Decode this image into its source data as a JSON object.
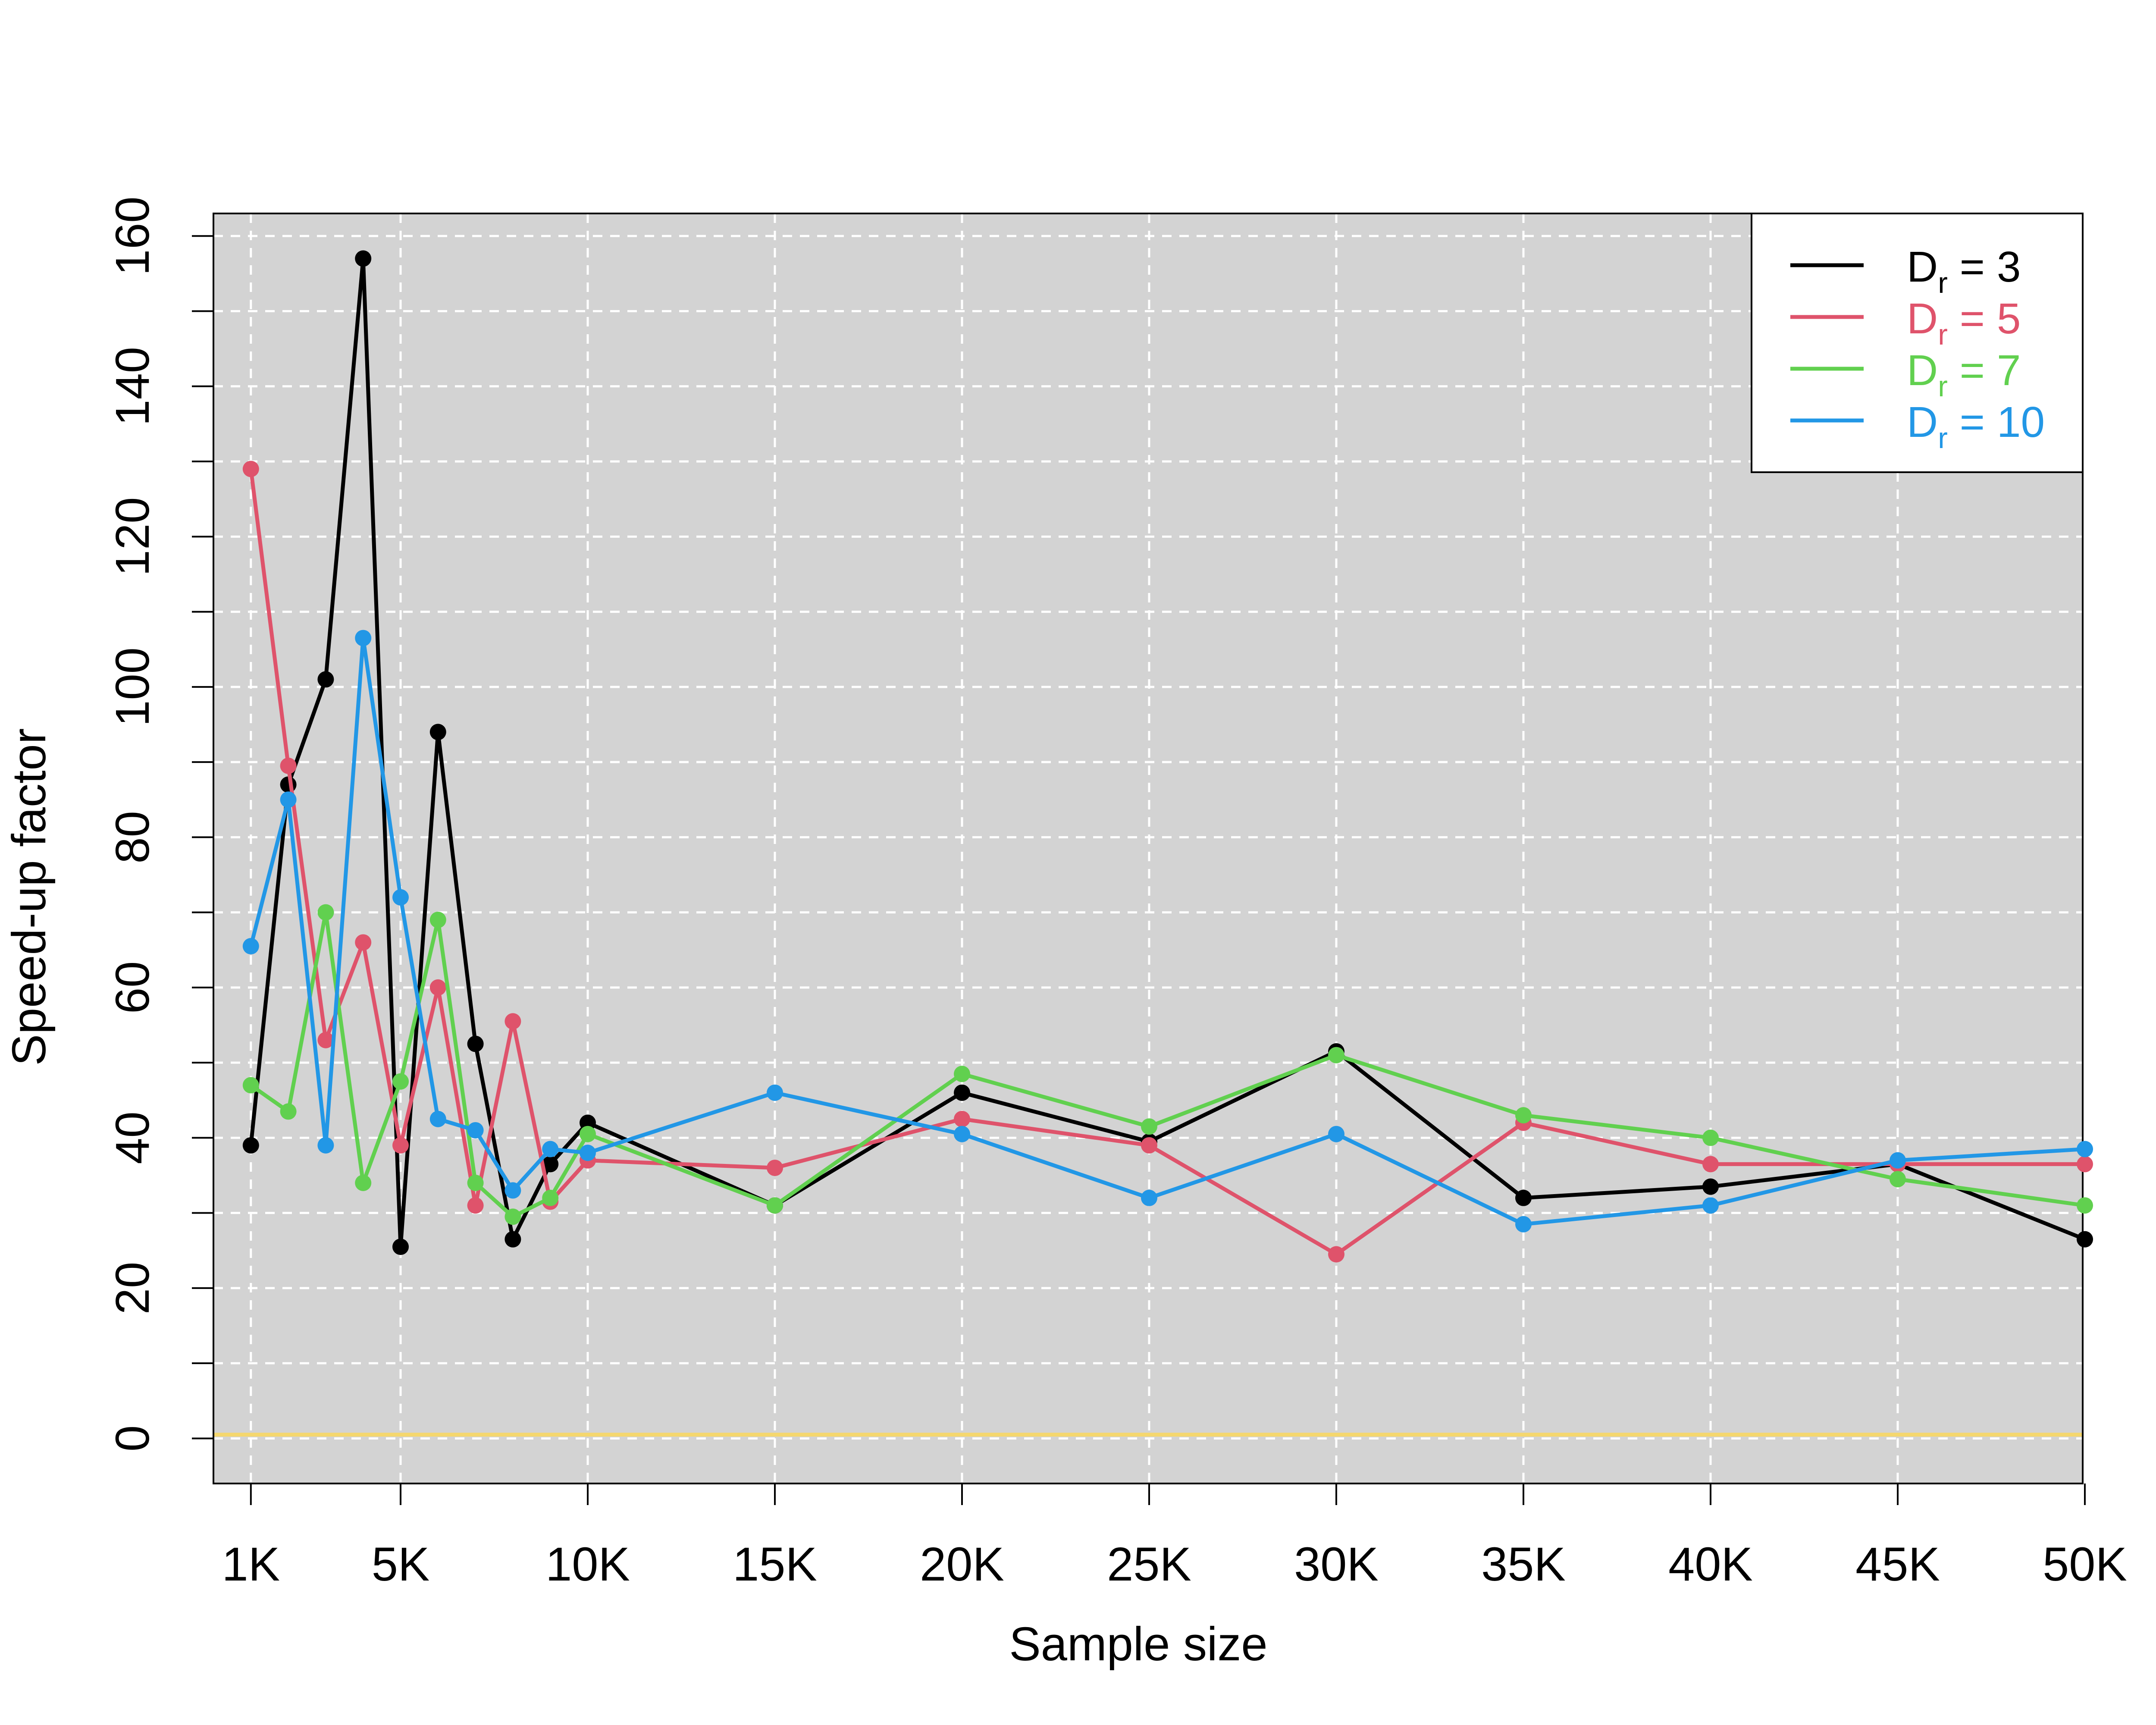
{
  "chart_data": {
    "type": "line",
    "xlabel": "Sample size",
    "ylabel": "Speed-up factor",
    "xlim": [
      0,
      50000
    ],
    "ylim": [
      -6,
      163
    ],
    "x_ticks": [
      {
        "value": 1000,
        "label": "1K"
      },
      {
        "value": 5000,
        "label": "5K"
      },
      {
        "value": 10000,
        "label": "10K"
      },
      {
        "value": 15000,
        "label": "15K"
      },
      {
        "value": 20000,
        "label": "20K"
      },
      {
        "value": 25000,
        "label": "25K"
      },
      {
        "value": 30000,
        "label": "30K"
      },
      {
        "value": 35000,
        "label": "35K"
      },
      {
        "value": 40000,
        "label": "40K"
      },
      {
        "value": 45000,
        "label": "45K"
      },
      {
        "value": 50000,
        "label": "50K"
      }
    ],
    "y_ticks": [
      {
        "value": 0,
        "label": "0"
      },
      {
        "value": 20,
        "label": "20"
      },
      {
        "value": 40,
        "label": "40"
      },
      {
        "value": 60,
        "label": "60"
      },
      {
        "value": 80,
        "label": "80"
      },
      {
        "value": 100,
        "label": "100"
      },
      {
        "value": 120,
        "label": "120"
      },
      {
        "value": 140,
        "label": "140"
      },
      {
        "value": 160,
        "label": "160"
      }
    ],
    "y_minor_ticks": [
      10,
      30,
      50,
      70,
      90,
      110,
      130,
      150
    ],
    "grid": true,
    "background_color": "#d3d3d3",
    "reference_line": {
      "y": 0.5,
      "color": "#f5d76e"
    },
    "legend": {
      "position": "top-right"
    },
    "x": [
      1000,
      2000,
      3000,
      4000,
      5000,
      6000,
      7000,
      8000,
      9000,
      10000,
      15000,
      20000,
      25000,
      30000,
      35000,
      40000,
      45000,
      50000
    ],
    "series": [
      {
        "legend_main": "D",
        "legend_sub": "r",
        "legend_rest": " = 3",
        "color": "#000000",
        "values": [
          39,
          87,
          101,
          157,
          25.5,
          94,
          52.5,
          26.5,
          36.5,
          42,
          31,
          46,
          39.5,
          51.5,
          32,
          33.5,
          36.5,
          26.5
        ]
      },
      {
        "legend_main": "D",
        "legend_sub": "r",
        "legend_rest": " = 5",
        "color": "#df536b",
        "values": [
          129,
          89.5,
          53,
          66,
          39,
          60,
          31,
          55.5,
          31.5,
          37,
          36,
          42.5,
          39,
          24.5,
          42,
          36.5,
          36.5,
          36.5
        ]
      },
      {
        "legend_main": "D",
        "legend_sub": "r",
        "legend_rest": " = 7",
        "color": "#61d04f",
        "values": [
          47,
          43.5,
          70,
          34,
          47.5,
          69,
          34,
          29.5,
          32,
          40.5,
          31,
          48.5,
          41.5,
          51,
          43,
          40,
          34.5,
          31
        ]
      },
      {
        "legend_main": "D",
        "legend_sub": "r",
        "legend_rest": " = 10",
        "color": "#2297e6",
        "values": [
          65.5,
          85,
          39,
          106.5,
          72,
          42.5,
          41,
          33,
          38.5,
          38,
          46,
          40.5,
          32,
          40.5,
          28.5,
          31,
          37,
          38.5
        ]
      }
    ]
  }
}
